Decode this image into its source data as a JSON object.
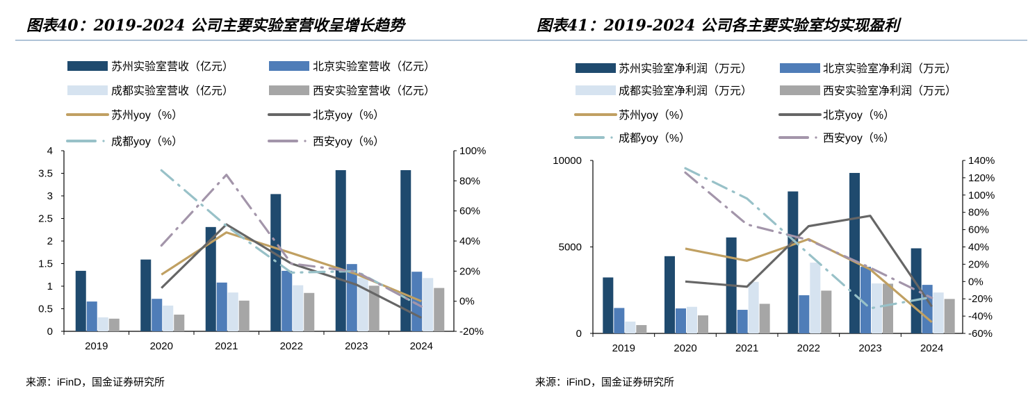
{
  "colors": {
    "suzhou_bar": "#1F4A6E",
    "beijing_bar": "#4F7DB8",
    "chengdu_bar": "#D6E3F0",
    "xian_bar": "#A6A6A6",
    "suzhou_line": "#C0A062",
    "beijing_line": "#666666",
    "chengdu_line": "#98C1C8",
    "xian_line": "#A395AA",
    "divider": "#7F9FBF"
  },
  "chart_data": [
    {
      "type": "bar+line",
      "title": "图表40：2019-2024 公司主要实验室营收呈增长趋势",
      "source": "来源：iFinD，国金证券研究所",
      "categories": [
        "2019",
        "2020",
        "2021",
        "2022",
        "2023",
        "2024"
      ],
      "ylim": [
        0,
        4
      ],
      "yticks": [
        "0",
        "0.5",
        "1",
        "1.5",
        "2",
        "2.5",
        "3",
        "3.5",
        "4"
      ],
      "y2lim": [
        -20,
        100
      ],
      "y2ticks": [
        "-20%",
        "0%",
        "20%",
        "40%",
        "60%",
        "80%",
        "100%"
      ],
      "legend_position": "top",
      "bars": [
        {
          "name": "苏州实验室营收（亿元）",
          "values": [
            1.34,
            1.59,
            2.31,
            3.04,
            3.57,
            3.57
          ]
        },
        {
          "name": "北京实验室营收（亿元）",
          "values": [
            0.66,
            0.72,
            1.08,
            1.34,
            1.49,
            1.32
          ]
        },
        {
          "name": "成都实验室营收（亿元）",
          "values": [
            0.31,
            0.57,
            0.86,
            1.02,
            1.19,
            1.18
          ]
        },
        {
          "name": "西安实验室营收（亿元）",
          "values": [
            0.28,
            0.37,
            0.68,
            0.85,
            1.01,
            0.96
          ]
        }
      ],
      "lines": [
        {
          "name": "苏州yoy（%）",
          "values": [
            null,
            17.7,
            45.7,
            32,
            18,
            0
          ]
        },
        {
          "name": "北京yoy（%）",
          "values": [
            null,
            8.8,
            51,
            25,
            11,
            -11
          ]
        },
        {
          "name": "成都yoy（%）",
          "values": [
            null,
            87,
            50,
            19,
            20,
            -3.5
          ]
        },
        {
          "name": "西安yoy（%）",
          "values": [
            null,
            37,
            84,
            25,
            19.5,
            -3.5
          ]
        }
      ]
    },
    {
      "type": "bar+line",
      "title": "图表41：2019-2024 公司各主要实验室均实现盈利",
      "source": "来源：iFinD，国金证券研究所",
      "categories": [
        "2019",
        "2020",
        "2021",
        "2022",
        "2023",
        "2024"
      ],
      "ylim": [
        0,
        10000
      ],
      "yticks": [
        "0",
        "5000",
        "10000"
      ],
      "y2lim": [
        -60,
        140
      ],
      "y2ticks": [
        "-60%",
        "-40%",
        "-20%",
        "0%",
        "20%",
        "40%",
        "60%",
        "80%",
        "100%",
        "120%",
        "140%"
      ],
      "legend_position": "top",
      "bars": [
        {
          "name": "苏州实验室净利润（万元）",
          "values": [
            3235,
            4465,
            5548,
            8209,
            9278,
            4920
          ]
        },
        {
          "name": "北京实验室净利润（万元）",
          "values": [
            1470,
            1444,
            1364,
            2206,
            3850,
            2807
          ]
        },
        {
          "name": "成都实验室净利润（万元）",
          "values": [
            682,
            1537,
            2981,
            4091,
            2888,
            2366
          ]
        },
        {
          "name": "西安实验室净利润（万元）",
          "values": [
            481,
            1043,
            1711,
            2473,
            2874,
            1992
          ]
        }
      ],
      "lines": [
        {
          "name": "苏州yoy（%）",
          "values": [
            null,
            38,
            24,
            49,
            14,
            -47
          ]
        },
        {
          "name": "北京yoy（%）",
          "values": [
            null,
            0,
            -6,
            64,
            76,
            -29
          ]
        },
        {
          "name": "成都yoy（%）",
          "values": [
            null,
            131,
            96,
            32,
            -31,
            -18
          ]
        },
        {
          "name": "西安yoy（%）",
          "values": [
            null,
            126,
            66,
            48,
            16,
            -19
          ]
        }
      ]
    }
  ]
}
